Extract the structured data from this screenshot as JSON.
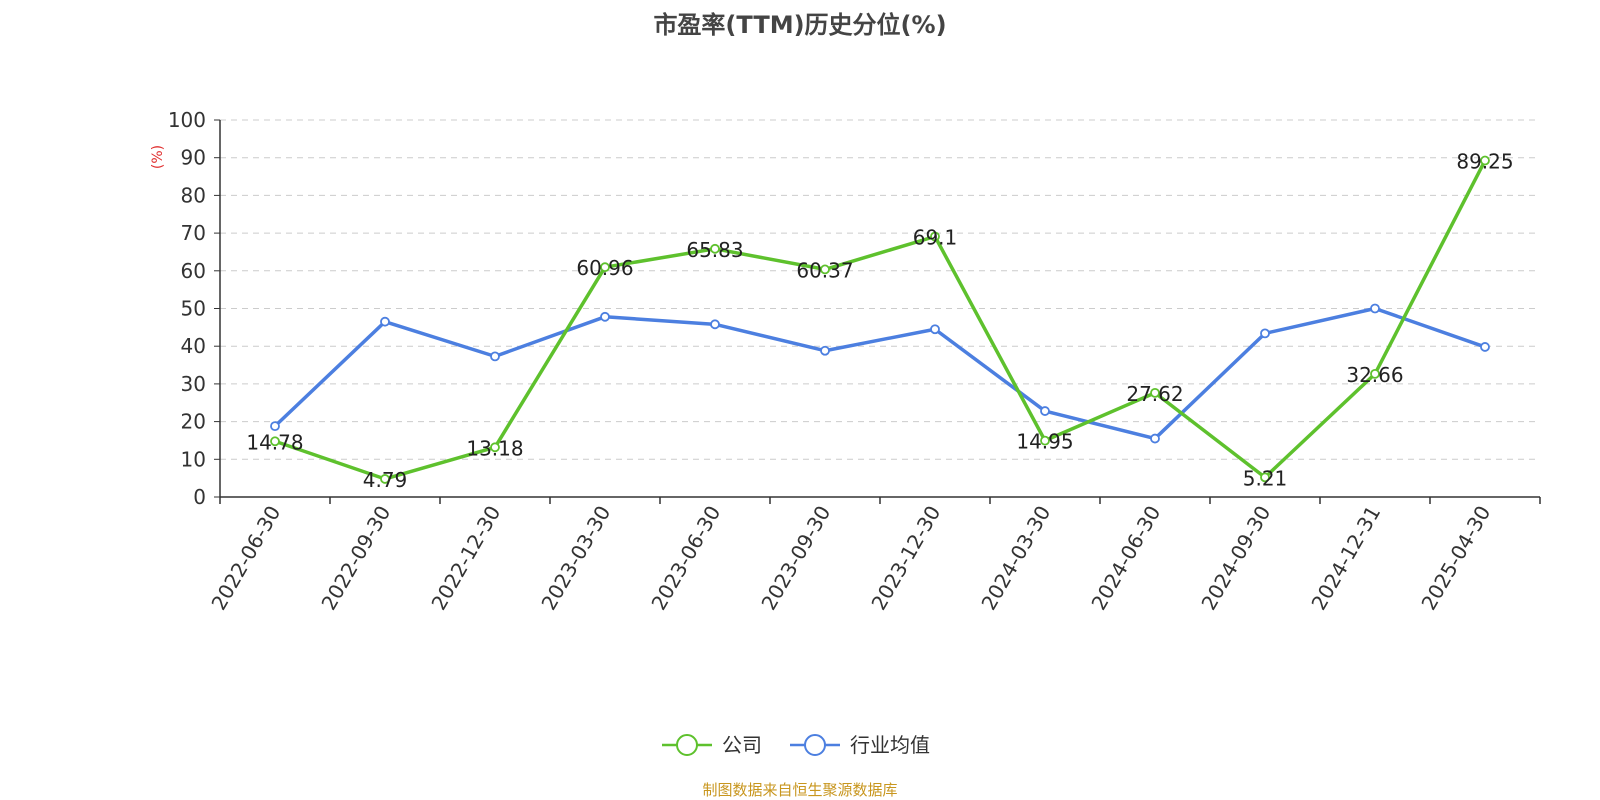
{
  "chart_data": {
    "type": "line",
    "title": "市盈率(TTM)历史分位(%)",
    "ylabel": "(%)",
    "ylim": [
      0,
      100
    ],
    "yticks": [
      0,
      10,
      20,
      30,
      40,
      50,
      60,
      70,
      80,
      90,
      100
    ],
    "grid": true,
    "legend_position": "bottom",
    "categories": [
      "2022-06-30",
      "2022-09-30",
      "2022-12-30",
      "2023-03-30",
      "2023-06-30",
      "2023-09-30",
      "2023-12-30",
      "2024-03-30",
      "2024-06-30",
      "2024-09-30",
      "2024-12-31",
      "2025-04-30"
    ],
    "series": [
      {
        "name": "公司",
        "color": "#5ec12d",
        "values": [
          14.78,
          4.79,
          13.18,
          60.96,
          65.83,
          60.37,
          69.1,
          14.95,
          27.62,
          5.21,
          32.66,
          89.25
        ],
        "labels": [
          "14.78",
          "4.79",
          "13.18",
          "60.96",
          "65.83",
          "60.37",
          "69.1",
          "14.95",
          "27.62",
          "5.21",
          "32.66",
          "89.25"
        ]
      },
      {
        "name": "行业均值",
        "color": "#4c7fe0",
        "values": [
          18.8,
          46.5,
          37.3,
          47.8,
          45.8,
          38.8,
          44.5,
          22.8,
          15.5,
          43.4,
          50.0,
          39.8
        ]
      }
    ]
  },
  "colors": {
    "ylabel": "#e03030",
    "source": "#c8961e",
    "grid": "#cccccc",
    "axis": "#333333"
  },
  "footer": {
    "source": "制图数据来自恒生聚源数据库"
  }
}
